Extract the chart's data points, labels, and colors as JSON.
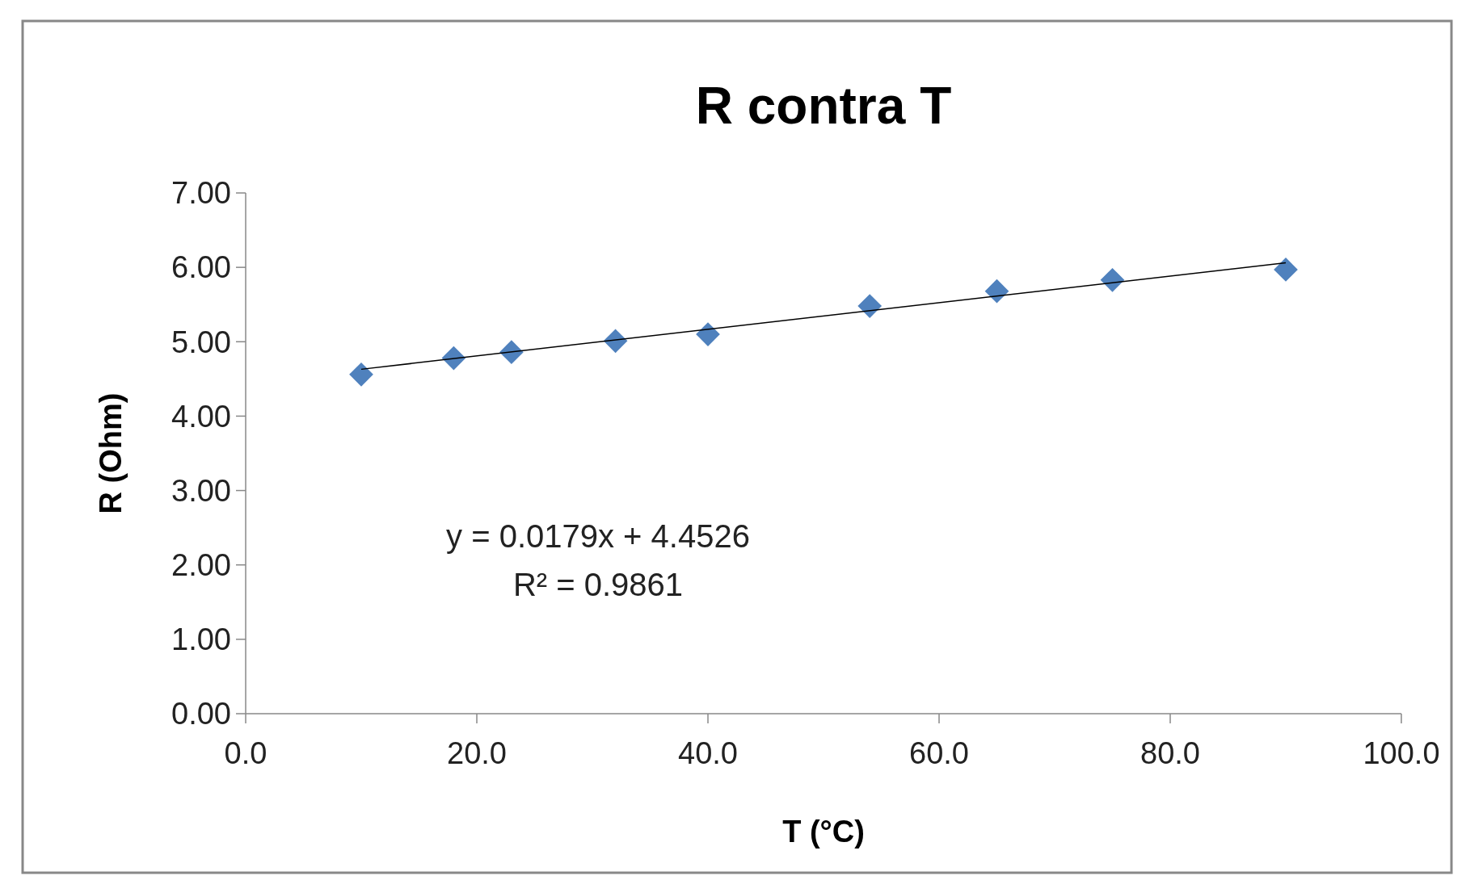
{
  "chart_data": {
    "type": "scatter",
    "title": "R contra T",
    "xlabel": "T (°C)",
    "ylabel": "R (Ohm)",
    "xlim": [
      0,
      100
    ],
    "ylim": [
      0,
      7
    ],
    "xticks": [
      {
        "value": 0,
        "label": "0.0"
      },
      {
        "value": 20,
        "label": "20.0"
      },
      {
        "value": 40,
        "label": "40.0"
      },
      {
        "value": 60,
        "label": "60.0"
      },
      {
        "value": 80,
        "label": "80.0"
      },
      {
        "value": 100,
        "label": "100.0"
      }
    ],
    "yticks": [
      {
        "value": 0,
        "label": "0.00"
      },
      {
        "value": 1,
        "label": "1.00"
      },
      {
        "value": 2,
        "label": "2.00"
      },
      {
        "value": 3,
        "label": "3.00"
      },
      {
        "value": 4,
        "label": "4.00"
      },
      {
        "value": 5,
        "label": "5.00"
      },
      {
        "value": 6,
        "label": "6.00"
      },
      {
        "value": 7,
        "label": "7.00"
      }
    ],
    "grid": false,
    "series": [
      {
        "type": "scatter",
        "marker": "diamond",
        "color": "#4f81bd",
        "x": [
          10,
          18,
          23,
          32,
          40,
          54,
          65,
          75,
          90
        ],
        "values": [
          4.56,
          4.78,
          4.86,
          5.01,
          5.1,
          5.48,
          5.68,
          5.83,
          5.97
        ]
      },
      {
        "type": "line",
        "color": "#000000",
        "x": [
          10,
          90
        ],
        "values": [
          4.63,
          6.06
        ]
      }
    ],
    "annotations": [
      "y = 0.0179x + 4.4526",
      "R² = 0.9861"
    ]
  }
}
